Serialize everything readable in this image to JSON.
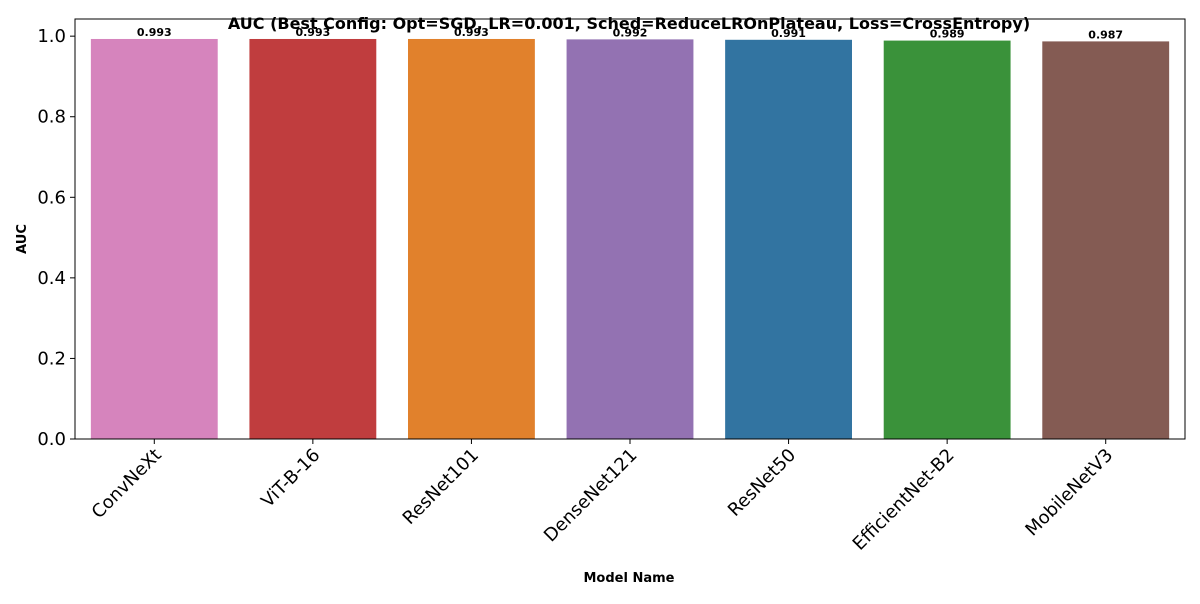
{
  "chart_data": {
    "type": "bar",
    "title": "AUC (Best Config: Opt=SGD, LR=0.001, Sched=ReduceLROnPlateau, Loss=CrossEntropy)",
    "xlabel": "Model Name",
    "ylabel": "AUC",
    "ylim": [
      0,
      1.0426
    ],
    "yticks": [
      0.0,
      0.2,
      0.4,
      0.6,
      0.8,
      1.0
    ],
    "ytick_labels": [
      "0.0",
      "0.2",
      "0.4",
      "0.6",
      "0.8",
      "1.0"
    ],
    "categories": [
      "ConvNeXt",
      "ViT-B-16",
      "ResNet101",
      "DenseNet121",
      "ResNet50",
      "EfficientNet-B2",
      "MobileNetV3"
    ],
    "values": [
      0.993,
      0.993,
      0.993,
      0.992,
      0.991,
      0.989,
      0.987
    ],
    "value_labels": [
      "0.993",
      "0.993",
      "0.993",
      "0.992",
      "0.991",
      "0.989",
      "0.987"
    ],
    "colors": [
      "#d684bd",
      "#c03d3e",
      "#e1812c",
      "#9372b2",
      "#3274a1",
      "#3a923a",
      "#845b53"
    ],
    "grid": false,
    "legend": "none"
  }
}
